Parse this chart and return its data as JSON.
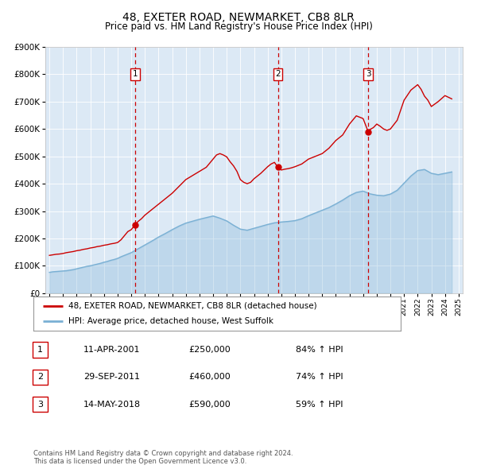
{
  "title": "48, EXETER ROAD, NEWMARKET, CB8 8LR",
  "subtitle": "Price paid vs. HM Land Registry's House Price Index (HPI)",
  "title_fontsize": 10,
  "subtitle_fontsize": 8.5,
  "background_color": "#ffffff",
  "plot_bg_color": "#dce9f5",
  "grid_color": "#ffffff",
  "ylim": [
    0,
    900000
  ],
  "yticks": [
    0,
    100000,
    200000,
    300000,
    400000,
    500000,
    600000,
    700000,
    800000,
    900000
  ],
  "sale_color": "#cc0000",
  "hpi_color": "#7ab0d4",
  "vline_color": "#cc0000",
  "sale_marker_color": "#cc0000",
  "transaction_label_border": "#cc0000",
  "sale_points": [
    {
      "year": 2001.28,
      "price": 250000,
      "label": "1"
    },
    {
      "year": 2011.75,
      "price": 460000,
      "label": "2"
    },
    {
      "year": 2018.37,
      "price": 590000,
      "label": "3"
    }
  ],
  "vlines": [
    2001.28,
    2011.75,
    2018.37
  ],
  "legend_sale_label": "48, EXETER ROAD, NEWMARKET, CB8 8LR (detached house)",
  "legend_hpi_label": "HPI: Average price, detached house, West Suffolk",
  "table_rows": [
    {
      "num": "1",
      "date": "11-APR-2001",
      "price": "£250,000",
      "pct": "84% ↑ HPI"
    },
    {
      "num": "2",
      "date": "29-SEP-2011",
      "price": "£460,000",
      "pct": "74% ↑ HPI"
    },
    {
      "num": "3",
      "date": "14-MAY-2018",
      "price": "£590,000",
      "pct": "59% ↑ HPI"
    }
  ],
  "footnote": "Contains HM Land Registry data © Crown copyright and database right 2024.\nThis data is licensed under the Open Government Licence v3.0.",
  "sale_line_x": [
    1995.0,
    1995.25,
    1995.5,
    1995.75,
    1996.0,
    1996.25,
    1996.5,
    1996.75,
    1997.0,
    1997.25,
    1997.5,
    1997.75,
    1998.0,
    1998.25,
    1998.5,
    1998.75,
    1999.0,
    1999.25,
    1999.5,
    1999.75,
    2000.0,
    2000.25,
    2000.5,
    2000.75,
    2001.0,
    2001.28,
    2001.5,
    2001.75,
    2002.0,
    2002.5,
    2003.0,
    2003.5,
    2004.0,
    2004.5,
    2005.0,
    2005.5,
    2006.0,
    2006.5,
    2007.0,
    2007.25,
    2007.5,
    2007.75,
    2008.0,
    2008.25,
    2008.5,
    2008.75,
    2009.0,
    2009.25,
    2009.5,
    2009.75,
    2010.0,
    2010.25,
    2010.5,
    2010.75,
    2011.0,
    2011.25,
    2011.5,
    2011.75,
    2012.0,
    2012.25,
    2012.5,
    2012.75,
    2013.0,
    2013.5,
    2014.0,
    2014.5,
    2015.0,
    2015.5,
    2016.0,
    2016.5,
    2017.0,
    2017.5,
    2018.0,
    2018.37,
    2018.5,
    2018.75,
    2019.0,
    2019.25,
    2019.5,
    2019.75,
    2020.0,
    2020.5,
    2021.0,
    2021.5,
    2022.0,
    2022.25,
    2022.5,
    2022.75,
    2023.0,
    2023.5,
    2024.0,
    2024.5
  ],
  "sale_line_y": [
    138000,
    140000,
    142000,
    143000,
    145000,
    148000,
    150000,
    152000,
    155000,
    157000,
    160000,
    162000,
    165000,
    167000,
    170000,
    172000,
    175000,
    177000,
    180000,
    182000,
    185000,
    195000,
    210000,
    225000,
    232000,
    250000,
    262000,
    272000,
    285000,
    305000,
    325000,
    345000,
    365000,
    390000,
    415000,
    430000,
    445000,
    460000,
    490000,
    505000,
    510000,
    505000,
    498000,
    480000,
    465000,
    445000,
    415000,
    405000,
    400000,
    405000,
    418000,
    428000,
    438000,
    450000,
    462000,
    472000,
    478000,
    460000,
    450000,
    453000,
    455000,
    458000,
    462000,
    472000,
    490000,
    500000,
    510000,
    530000,
    558000,
    578000,
    618000,
    648000,
    638000,
    590000,
    598000,
    605000,
    618000,
    610000,
    600000,
    595000,
    600000,
    632000,
    705000,
    742000,
    762000,
    745000,
    720000,
    705000,
    682000,
    700000,
    722000,
    710000
  ],
  "hpi_line_x": [
    1995.0,
    1995.25,
    1995.5,
    1995.75,
    1996.0,
    1996.25,
    1996.5,
    1996.75,
    1997.0,
    1997.25,
    1997.5,
    1997.75,
    1998.0,
    1998.25,
    1998.5,
    1998.75,
    1999.0,
    1999.25,
    1999.5,
    1999.75,
    2000.0,
    2000.25,
    2000.5,
    2000.75,
    2001.0,
    2001.5,
    2002.0,
    2002.5,
    2003.0,
    2003.5,
    2004.0,
    2004.5,
    2005.0,
    2005.5,
    2006.0,
    2006.5,
    2007.0,
    2007.5,
    2008.0,
    2008.5,
    2009.0,
    2009.5,
    2010.0,
    2010.5,
    2011.0,
    2011.5,
    2012.0,
    2012.5,
    2013.0,
    2013.5,
    2014.0,
    2014.5,
    2015.0,
    2015.5,
    2016.0,
    2016.5,
    2017.0,
    2017.5,
    2018.0,
    2018.5,
    2019.0,
    2019.5,
    2020.0,
    2020.5,
    2021.0,
    2021.5,
    2022.0,
    2022.5,
    2023.0,
    2023.5,
    2024.0,
    2024.5
  ],
  "hpi_line_y": [
    76000,
    78000,
    79000,
    80000,
    81000,
    82000,
    84000,
    86000,
    89000,
    92000,
    95000,
    98000,
    100000,
    103000,
    106000,
    109000,
    113000,
    116000,
    120000,
    123000,
    127000,
    133000,
    138000,
    143000,
    148000,
    162000,
    176000,
    190000,
    205000,
    218000,
    232000,
    245000,
    256000,
    263000,
    270000,
    276000,
    282000,
    274000,
    264000,
    248000,
    234000,
    230000,
    237000,
    244000,
    251000,
    257000,
    260000,
    262000,
    265000,
    272000,
    283000,
    293000,
    303000,
    313000,
    326000,
    340000,
    356000,
    368000,
    373000,
    363000,
    358000,
    356000,
    362000,
    376000,
    402000,
    428000,
    448000,
    452000,
    438000,
    433000,
    438000,
    443000
  ]
}
